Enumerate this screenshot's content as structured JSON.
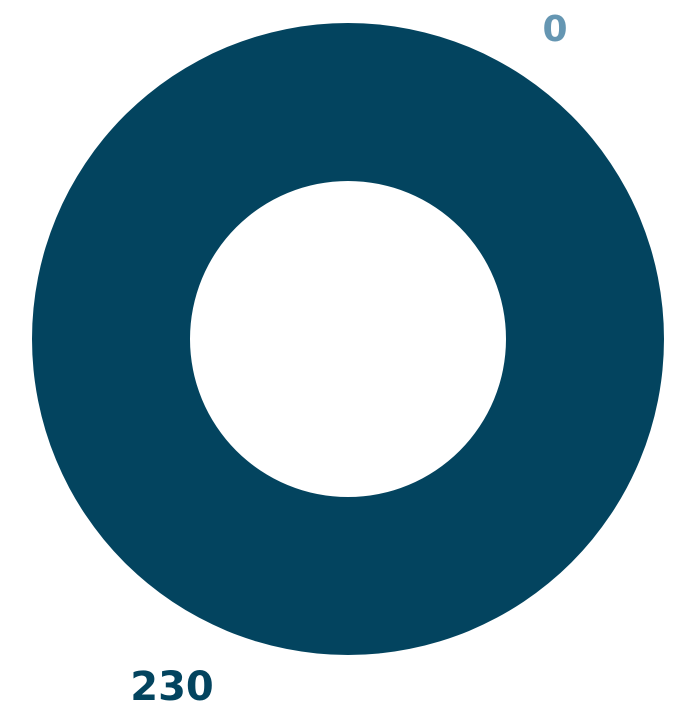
{
  "chart_data": {
    "type": "pie",
    "variant": "donut",
    "slices": [
      {
        "label": "",
        "value": 230,
        "display": "230",
        "color": "#03445f",
        "label_color": "#03445f"
      },
      {
        "label": "",
        "value": 0,
        "display": "0",
        "color": "#6596b2",
        "label_color": "#6596b2"
      }
    ],
    "title": "",
    "legend": "none"
  }
}
